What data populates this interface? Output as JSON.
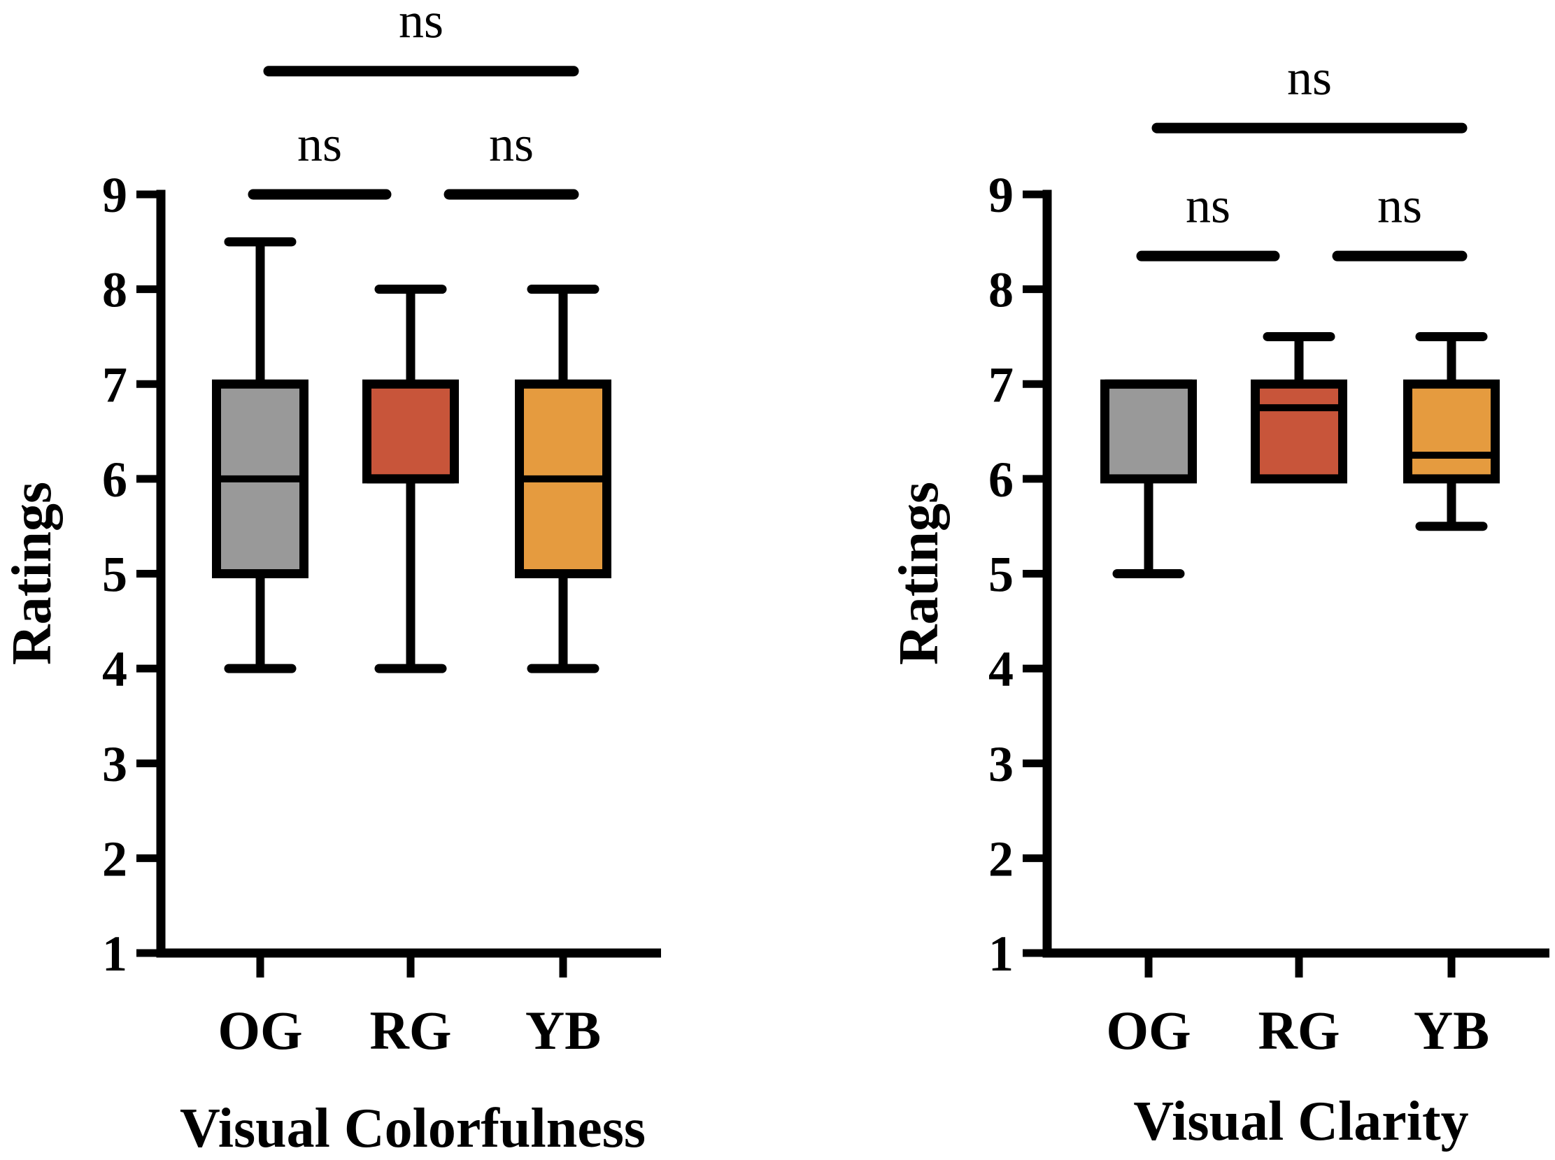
{
  "chart_data": [
    {
      "type": "boxplot",
      "title": "",
      "xlabel": "Visual Colorfulness",
      "ylabel": "Ratings",
      "ylim": [
        1,
        9
      ],
      "yticks": [
        "1",
        "2",
        "3",
        "4",
        "5",
        "6",
        "7",
        "8",
        "9"
      ],
      "categories": [
        "OG",
        "RG",
        "YB"
      ],
      "boxes": [
        {
          "category": "OG",
          "whisker_low": 4,
          "q1": 5,
          "median": 6,
          "q3": 7,
          "whisker_high": 8.5,
          "color": "#999999"
        },
        {
          "category": "RG",
          "whisker_low": 4,
          "q1": 6,
          "median": 6,
          "q3": 7,
          "whisker_high": 8,
          "color": "#C8553A"
        },
        {
          "category": "YB",
          "whisker_low": 4,
          "q1": 5,
          "median": 6,
          "q3": 7,
          "whisker_high": 8,
          "color": "#E59B3F"
        }
      ],
      "significance": [
        {
          "from": "OG",
          "to": "RG",
          "label": "ns",
          "y": 9.0
        },
        {
          "from": "RG",
          "to": "YB",
          "label": "ns",
          "y": 9.0
        },
        {
          "from": "OG",
          "to": "YB",
          "label": "ns",
          "y": 10.3
        }
      ],
      "grid": false
    },
    {
      "type": "boxplot",
      "title": "",
      "xlabel": "Visual Clarity",
      "ylabel": "Ratings",
      "ylim": [
        1,
        9
      ],
      "yticks": [
        "1",
        "2",
        "3",
        "4",
        "5",
        "6",
        "7",
        "8",
        "9"
      ],
      "categories": [
        "OG",
        "RG",
        "YB"
      ],
      "boxes": [
        {
          "category": "OG",
          "whisker_low": 5,
          "q1": 6,
          "median": 7,
          "q3": 7,
          "whisker_high": 7,
          "color": "#999999"
        },
        {
          "category": "RG",
          "whisker_low": 6,
          "q1": 6,
          "median": 6.75,
          "q3": 7,
          "whisker_high": 7.5,
          "color": "#C8553A"
        },
        {
          "category": "YB",
          "whisker_low": 5.5,
          "q1": 6,
          "median": 6.25,
          "q3": 7,
          "whisker_high": 7.5,
          "color": "#E59B3F"
        }
      ],
      "significance": [
        {
          "from": "OG",
          "to": "RG",
          "label": "ns",
          "y": 8.35
        },
        {
          "from": "RG",
          "to": "YB",
          "label": "ns",
          "y": 8.35
        },
        {
          "from": "OG",
          "to": "YB",
          "label": "ns",
          "y": 9.7
        }
      ],
      "grid": false
    }
  ]
}
